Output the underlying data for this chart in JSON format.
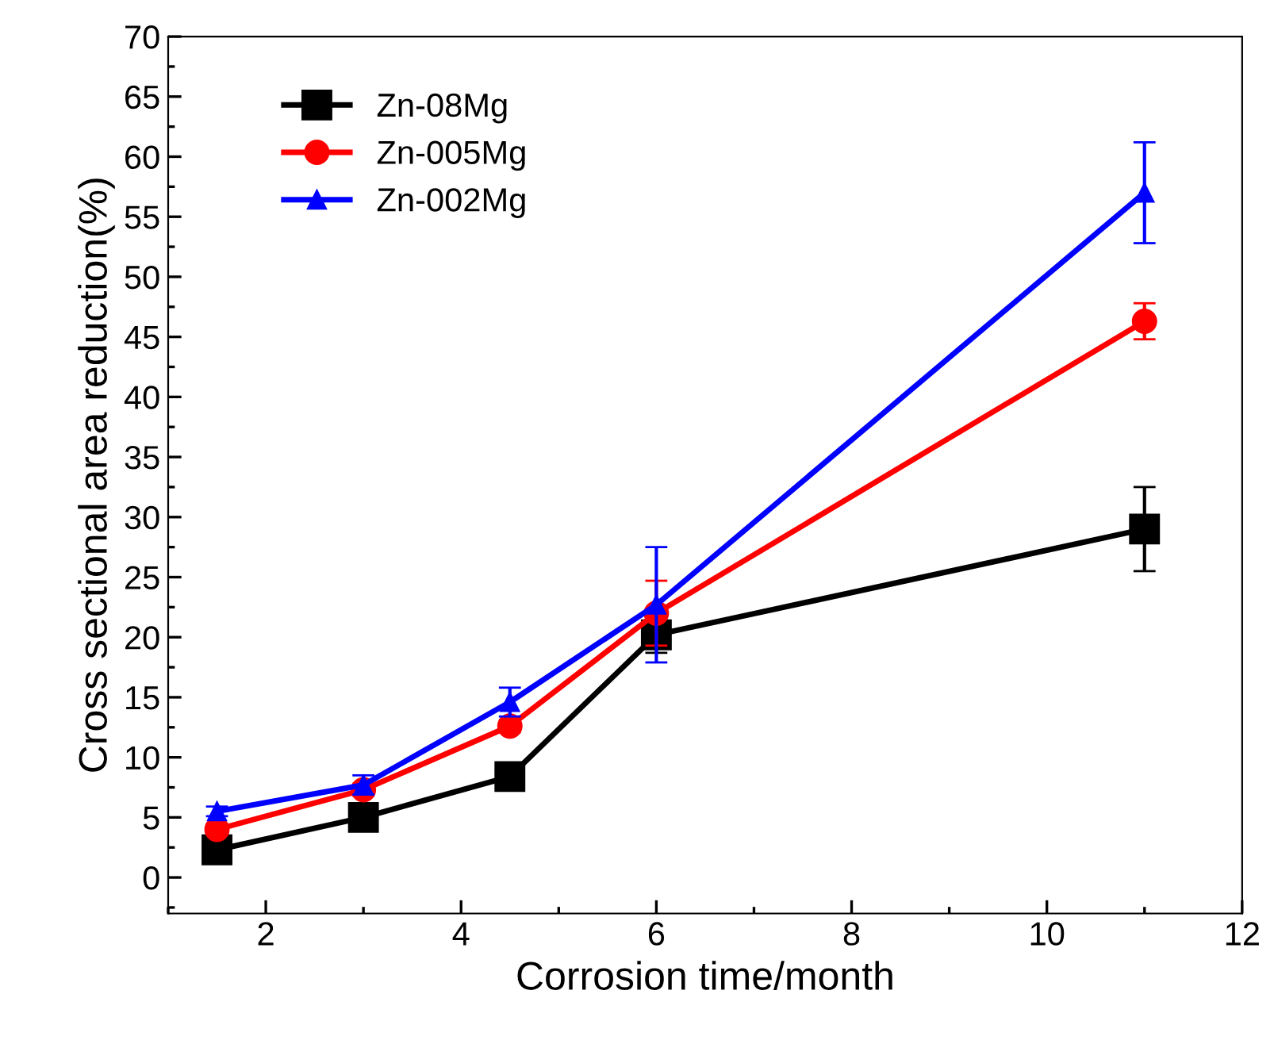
{
  "chart_data": {
    "type": "line",
    "xlabel": "Corrosion time/month",
    "ylabel": "Cross sectional area reduction(%)",
    "x": [
      1.5,
      3,
      4.5,
      6,
      11
    ],
    "series": [
      {
        "name": "Zn-08Mg",
        "color": "#000000",
        "marker": "square",
        "values": [
          2.3,
          5.0,
          8.4,
          20.2,
          29.0
        ],
        "errors": [
          0.3,
          0.3,
          0.4,
          1.5,
          3.5
        ]
      },
      {
        "name": "Zn-005Mg",
        "color": "#ff0000",
        "marker": "circle",
        "values": [
          4.0,
          7.3,
          12.6,
          22.0,
          46.3
        ],
        "errors": [
          0.4,
          0.5,
          0.5,
          2.7,
          1.5
        ]
      },
      {
        "name": "Zn-002Mg",
        "color": "#0000ff",
        "marker": "triangle",
        "values": [
          5.5,
          7.7,
          14.6,
          22.7,
          57.0
        ],
        "errors": [
          0.4,
          0.8,
          1.2,
          4.8,
          4.2
        ]
      }
    ],
    "xlim": [
      1,
      12
    ],
    "xticks": [
      2,
      4,
      6,
      8,
      10,
      12
    ],
    "ylim": [
      -3,
      70
    ],
    "yticks": [
      0,
      5,
      10,
      15,
      20,
      25,
      30,
      35,
      40,
      45,
      50,
      55,
      60,
      65,
      70
    ],
    "grid": false,
    "legend": "top left",
    "line_style": "solid"
  }
}
